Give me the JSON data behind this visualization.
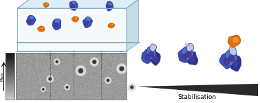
{
  "stabilisation_label": "Stabilisation",
  "mass_label": "Mass→",
  "background_color": "#ffffff",
  "box_top_color": "#ddeef8",
  "box_front_color": "#e8f2f8",
  "box_right_color": "#c8dde8",
  "box_edge_color": "#8ab0c0",
  "spike_blue_dark": "#2a3590",
  "spike_blue_mid": "#3d50b8",
  "spike_blue_light": "#5570d0",
  "spike_blue_pale": "#8090d8",
  "spike_lavender": "#c0c8e8",
  "spike_purple": "#4a3a90",
  "ace2_orange": "#e87010",
  "ace2_orange_light": "#f09030",
  "ace2_orange_dark": "#c05800",
  "dashed_line_color": "#444444",
  "gray_gradient_top": "#303030",
  "gray_gradient_bot": "#d0d0d0",
  "microscopy_bg": "#a8a8a8",
  "spot_dark": "#404040",
  "spot_bright": "#c8c8c8",
  "triangle_color": "#2a2a2a"
}
